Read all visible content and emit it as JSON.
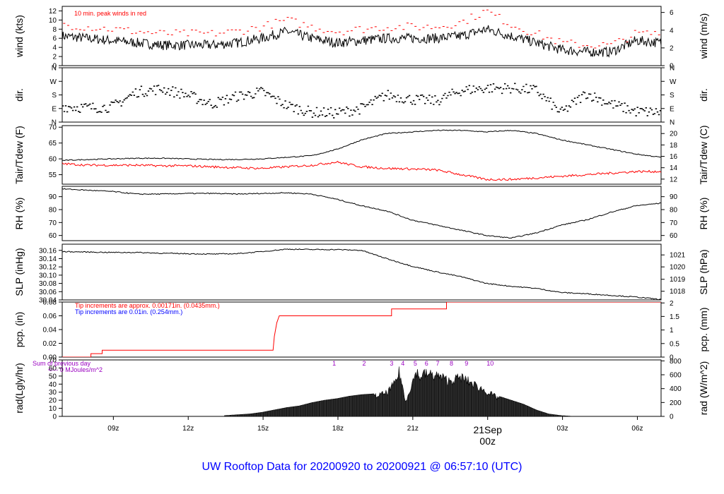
{
  "chart_data": {
    "type": "line",
    "title": "UW Rooftop Data for 20200920  to  20200921 @ 06:57:10  (UTC)",
    "colors": {
      "primary": "#000000",
      "red": "#ff0000",
      "blue": "#0000ff",
      "purple": "#9a00c0",
      "title": "#0000ff"
    },
    "x_axis": {
      "unit": "hours since 2020-09-20 06:57 UTC",
      "range": [
        0,
        24
      ],
      "ticks": [
        {
          "x": 2.05,
          "label": "09z"
        },
        {
          "x": 5.05,
          "label": "12z"
        },
        {
          "x": 8.05,
          "label": "15z"
        },
        {
          "x": 11.05,
          "label": "18z"
        },
        {
          "x": 14.05,
          "label": "21z"
        },
        {
          "x": 20.05,
          "label": "03z"
        },
        {
          "x": 23.05,
          "label": "06z"
        }
      ],
      "date_marker": {
        "x": 17.05,
        "line1": "21Sep",
        "line2": "00z"
      }
    },
    "panels": [
      {
        "id": "wind",
        "ylabel_left": "wind (kts)",
        "ylabel_right": "wind (m/s)",
        "ylim": [
          0,
          13
        ],
        "left_ticks": [
          "0",
          "2",
          "4",
          "6",
          "8",
          "10",
          "12"
        ],
        "left_tick_values": [
          0,
          2,
          4,
          6,
          8,
          10,
          12
        ],
        "right_ticks": [
          "0",
          "2",
          "4",
          "6"
        ],
        "right_tick_values": [
          0,
          3.888,
          7.776,
          11.664
        ],
        "annotation": "10 min. peak winds in red",
        "series": [
          {
            "role": "mean",
            "color": "#000000",
            "x": [
              0,
              1,
              2,
              3,
              4,
              5,
              6,
              7,
              8,
              9,
              10,
              11,
              12,
              13,
              14,
              15,
              16,
              17,
              18,
              19,
              20,
              21,
              22,
              23,
              24
            ],
            "y": [
              6.5,
              6,
              5.5,
              5,
              4.5,
              4.5,
              4.5,
              5,
              6,
              7.5,
              6,
              5,
              5.5,
              6,
              6,
              6,
              6.5,
              8,
              6.5,
              5,
              3.5,
              3,
              3,
              5.5,
              5
            ]
          },
          {
            "role": "peak",
            "color": "#ff0000",
            "x": [
              0,
              1,
              2,
              3,
              4,
              5,
              6,
              7,
              8,
              9,
              10,
              11,
              12,
              13,
              14,
              15,
              16,
              17,
              18,
              19,
              20,
              21,
              22,
              23,
              24
            ],
            "y": [
              9,
              8.5,
              8,
              7.5,
              7,
              7,
              7,
              7.5,
              8.5,
              10,
              8.5,
              7.5,
              8,
              8.5,
              8.5,
              8.5,
              9.5,
              12,
              9,
              7,
              5,
              4.5,
              4.5,
              7,
              7
            ]
          }
        ]
      },
      {
        "id": "direction",
        "ylabel_left": "dir.",
        "ylabel_right": "dir.",
        "ylim": [
          0,
          360
        ],
        "left_ticks": [
          "N",
          "E",
          "S",
          "W",
          "N"
        ],
        "left_tick_values": [
          0,
          90,
          180,
          270,
          360
        ],
        "right_ticks": [
          "N",
          "E",
          "S",
          "W",
          "N"
        ],
        "right_tick_values": [
          0,
          90,
          180,
          270,
          360
        ],
        "series": [
          {
            "role": "direction",
            "color": "#000000",
            "style": "points",
            "x": [
              0,
              1,
              2,
              3,
              4,
              5,
              6,
              7,
              8,
              9,
              10,
              11,
              12,
              13,
              14,
              15,
              16,
              17,
              18,
              19,
              20,
              21,
              22,
              23,
              24
            ],
            "y": [
              105,
              95,
              100,
              200,
              220,
              180,
              120,
              170,
              200,
              110,
              65,
              60,
              90,
              180,
              150,
              140,
              210,
              225,
              225,
              210,
              60,
              190,
              120,
              70,
              65
            ]
          }
        ]
      },
      {
        "id": "temperature",
        "ylabel_left": "Tair/Tdew (F)",
        "ylabel_right": "Tair/Tdew (C)",
        "ylim": [
          52,
          70.5
        ],
        "left_ticks": [
          "55",
          "60",
          "65",
          "70"
        ],
        "left_tick_values": [
          55,
          60,
          65,
          70
        ],
        "right_ticks": [
          "12",
          "14",
          "16",
          "18",
          "20"
        ],
        "right_tick_values": [
          53.6,
          57.2,
          60.8,
          64.4,
          68
        ],
        "series": [
          {
            "role": "Tair",
            "color": "#000000",
            "x": [
              0,
              1,
              2,
              3,
              4,
              5,
              6,
              7,
              8,
              9,
              10,
              11,
              12,
              13,
              14,
              15,
              16,
              17,
              18,
              19,
              20,
              21,
              22,
              23,
              24
            ],
            "y": [
              59.5,
              59.8,
              60,
              60.2,
              60.2,
              60,
              59.8,
              59.8,
              60,
              60.5,
              61,
              63,
              66,
              68,
              68.5,
              69,
              69,
              68.5,
              69,
              68,
              66,
              64.5,
              63,
              61.5,
              60.5
            ]
          },
          {
            "role": "Tdew",
            "color": "#ff0000",
            "x": [
              0,
              1,
              2,
              3,
              4,
              5,
              6,
              7,
              8,
              9,
              10,
              11,
              12,
              13,
              14,
              15,
              16,
              17,
              18,
              19,
              20,
              21,
              22,
              23,
              24
            ],
            "y": [
              58.5,
              58,
              58,
              58,
              57.8,
              57.8,
              57.5,
              57.2,
              57,
              57.5,
              58,
              59,
              57.5,
              57,
              56.8,
              56.5,
              55,
              53.5,
              53.5,
              54,
              54.5,
              55,
              55.5,
              56,
              56
            ]
          }
        ]
      },
      {
        "id": "rh",
        "ylabel_left": "RH (%)",
        "ylabel_right": "RH (%)",
        "ylim": [
          56,
          98
        ],
        "left_ticks": [
          "60",
          "70",
          "80",
          "90"
        ],
        "left_tick_values": [
          60,
          70,
          80,
          90
        ],
        "right_ticks": [
          "60",
          "70",
          "80",
          "90"
        ],
        "right_tick_values": [
          60,
          70,
          80,
          90
        ],
        "series": [
          {
            "role": "RH",
            "color": "#000000",
            "x": [
              0,
              1,
              2,
              3,
              4,
              5,
              6,
              7,
              8,
              9,
              10,
              11,
              12,
              13,
              14,
              15,
              16,
              17,
              18,
              19,
              20,
              21,
              22,
              23,
              24
            ],
            "y": [
              96,
              95,
              94,
              92,
              92,
              92.5,
              92.5,
              92,
              92.5,
              93,
              92,
              88,
              83,
              79,
              72,
              68,
              64,
              60,
              58,
              62,
              68,
              72,
              78,
              83,
              85
            ]
          }
        ]
      },
      {
        "id": "slp",
        "ylabel_left": "SLP (inHg)",
        "ylabel_right": "SLP (hPa)",
        "ylim": [
          30.04,
          30.175
        ],
        "left_ticks": [
          "30.04",
          "30.06",
          "30.08",
          "30.10",
          "30.12",
          "30.14",
          "30.16"
        ],
        "left_tick_values": [
          30.04,
          30.06,
          30.08,
          30.1,
          30.12,
          30.14,
          30.16
        ],
        "right_ticks": [
          "1018",
          "1019",
          "1020",
          "1021"
        ],
        "right_tick_values": [
          30.061,
          30.09,
          30.12,
          30.149
        ],
        "series": [
          {
            "role": "SLP",
            "color": "#000000",
            "x": [
              0,
              1,
              2,
              3,
              4,
              5,
              6,
              7,
              8,
              9,
              10,
              11,
              12,
              13,
              14,
              15,
              16,
              17,
              18,
              19,
              20,
              21,
              22,
              23,
              24
            ],
            "y": [
              30.157,
              30.156,
              30.155,
              30.155,
              30.153,
              30.152,
              30.151,
              30.152,
              30.157,
              30.163,
              30.162,
              30.162,
              30.16,
              30.14,
              30.122,
              30.108,
              30.096,
              30.08,
              30.073,
              30.068,
              30.058,
              30.055,
              30.051,
              30.047,
              30.041
            ]
          }
        ]
      },
      {
        "id": "precip",
        "ylabel_left": "pcp. (in)",
        "ylabel_right": "pcp. (mm)",
        "ylim": [
          0,
          0.08
        ],
        "left_ticks": [
          "0.00",
          "0.02",
          "0.04",
          "0.06",
          "0.08"
        ],
        "left_tick_values": [
          0,
          0.02,
          0.04,
          0.06,
          0.08
        ],
        "right_ticks": [
          "0",
          "0.5",
          "1",
          "1.5",
          "2"
        ],
        "right_tick_values": [
          0,
          0.0197,
          0.0394,
          0.0591,
          0.0787
        ],
        "annotations": [
          {
            "text": "Tip increments are approx. 0.00171in. (0.0435mm.)",
            "color": "#ff0000"
          },
          {
            "text": "Tip increments are 0.01in. (0.254mm.)",
            "color": "#0000ff"
          }
        ],
        "series": [
          {
            "role": "accum",
            "color": "#ff0000",
            "style": "step",
            "x": [
              0,
              1.15,
              1.15,
              1.6,
              1.6,
              8.45,
              8.5,
              8.6,
              8.7,
              13.2,
              13.2,
              15.4,
              15.4,
              24
            ],
            "y": [
              0,
              0,
              0.005,
              0.005,
              0.01,
              0.01,
              0.03,
              0.05,
              0.06,
              0.06,
              0.07,
              0.07,
              0.08,
              0.08
            ]
          }
        ]
      },
      {
        "id": "radiation",
        "ylabel_left": "rad(Lgly/hr)",
        "ylabel_right": "rad (W/m^2)",
        "ylim": [
          0,
          70
        ],
        "left_ticks": [
          "0",
          "10",
          "20",
          "30",
          "40",
          "50",
          "60",
          "70"
        ],
        "left_tick_values": [
          0,
          10,
          20,
          30,
          40,
          50,
          60,
          70
        ],
        "right_ticks": [
          "0",
          "200",
          "400",
          "600",
          "800"
        ],
        "right_tick_values": [
          0,
          17.2,
          34.4,
          51.6,
          68.8
        ],
        "annotation_lines": [
          "Sum of previous day",
          "<--- 0 MJoules/m^2"
        ],
        "hour_labels": {
          "x": [
            10.9,
            12.1,
            13.2,
            13.65,
            14.15,
            14.6,
            15.05,
            15.6,
            16.2,
            17.15
          ],
          "labels": [
            "1",
            "2",
            "3",
            "4",
            "5",
            "6",
            "7",
            "8",
            "9",
            "10"
          ]
        },
        "series": [
          {
            "role": "radiation",
            "color": "#000000",
            "style": "bars",
            "x": [
              6.5,
              7,
              7.5,
              8,
              8.5,
              9,
              9.5,
              10,
              10.5,
              11,
              11.5,
              12,
              12.5,
              13,
              13.3,
              13.5,
              13.6,
              13.75,
              14,
              14.2,
              14.3,
              14.5,
              15,
              15.5,
              16,
              16.5,
              17,
              17.5,
              18,
              18.5,
              19,
              19.5,
              20,
              20.5
            ],
            "y": [
              1,
              2,
              3,
              5,
              8,
              11,
              13,
              17,
              20,
              22,
              25,
              27,
              28,
              33,
              45,
              62,
              50,
              20,
              45,
              64,
              55,
              60,
              58,
              50,
              55,
              45,
              35,
              25,
              20,
              15,
              8,
              3,
              1,
              0
            ]
          }
        ]
      }
    ]
  }
}
